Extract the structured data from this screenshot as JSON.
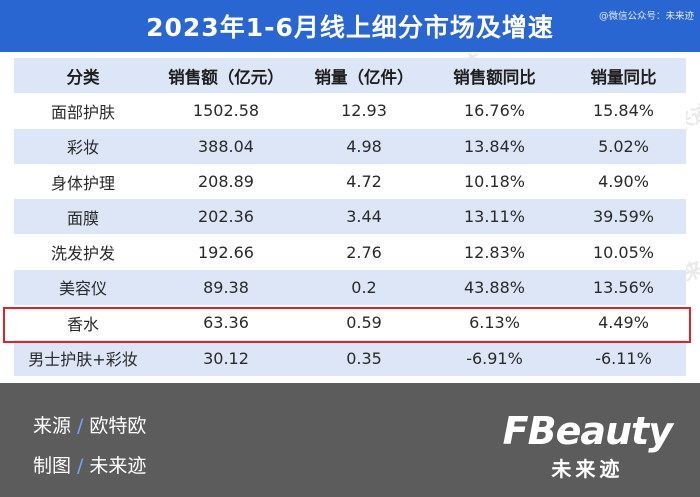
{
  "title": "2023年1-6月线上细分市场及增速",
  "watermark_tag": "@微信公众号：未来迹",
  "table": {
    "headers": [
      "分类",
      "销售额（亿元）",
      "销量（亿件）",
      "销售额同比",
      "销量同比"
    ],
    "rows": [
      [
        "面部护肤",
        "1502.58",
        "12.93",
        "16.76%",
        "15.84%"
      ],
      [
        "彩妆",
        "388.04",
        "4.98",
        "13.84%",
        "5.02%"
      ],
      [
        "身体护理",
        "208.89",
        "4.72",
        "10.18%",
        "4.90%"
      ],
      [
        "面膜",
        "202.36",
        "3.44",
        "13.11%",
        "39.59%"
      ],
      [
        "洗发护发",
        "192.66",
        "2.76",
        "12.83%",
        "10.05%"
      ],
      [
        "美容仪",
        "89.38",
        "0.2",
        "43.88%",
        "13.56%"
      ],
      [
        "香水",
        "63.36",
        "0.59",
        "6.13%",
        "4.49%"
      ],
      [
        "男士护肤+彩妆",
        "30.12",
        "0.35",
        "-6.91%",
        "-6.11%"
      ]
    ],
    "highlighted_row": "香水"
  },
  "footer": {
    "source_label": "来源",
    "source_value": "欧特欧",
    "maker_label": "制图",
    "maker_value": "未来迹"
  },
  "logo": {
    "mark": "FBeauty",
    "subtitle": "未来迹"
  },
  "colors": {
    "title_bg": "#2a66d2",
    "row_stripe": "#dce6f6",
    "highlight": "#e0232b",
    "footer_bg": "#5c5c5c",
    "slash_accent": "#6ea6ff"
  }
}
